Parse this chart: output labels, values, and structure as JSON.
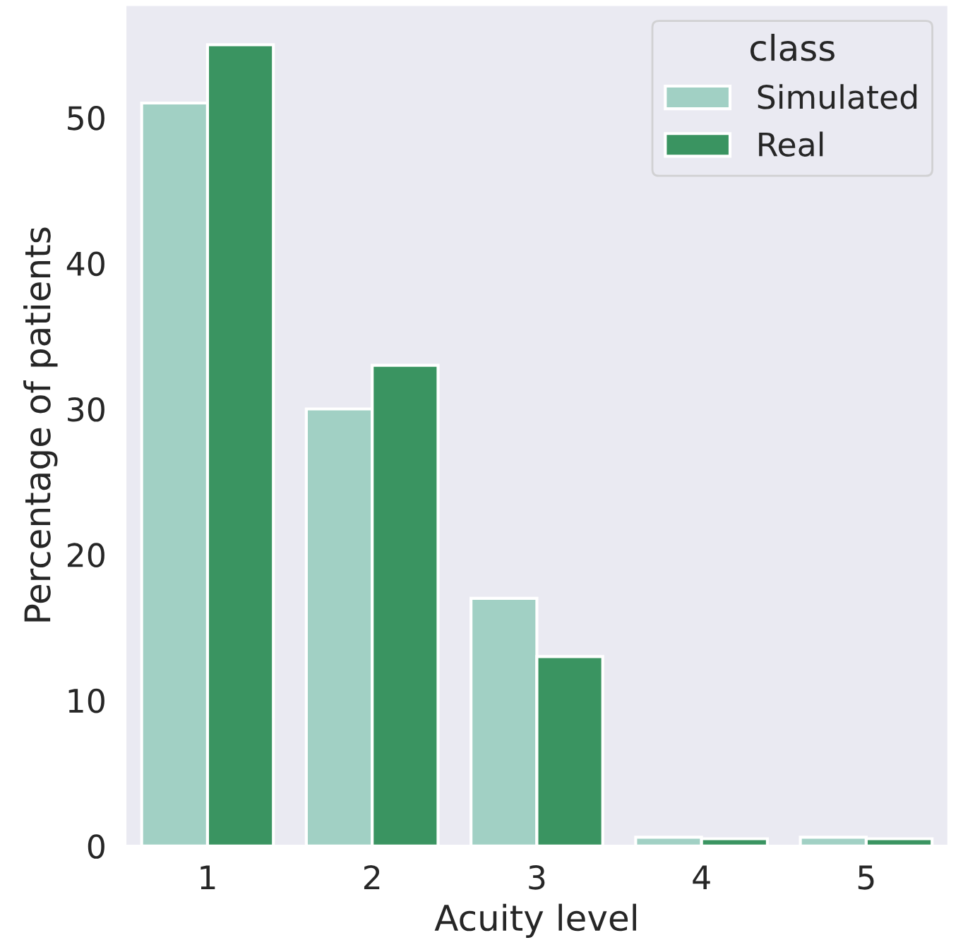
{
  "chart_data": {
    "type": "bar",
    "xlabel": "Acuity level",
    "ylabel": "Percentage of patients",
    "legend_title": "class",
    "categories": [
      "1",
      "2",
      "3",
      "4",
      "5"
    ],
    "series": [
      {
        "name": "Simulated",
        "color": "#a1d0c4",
        "values": [
          51,
          30,
          17,
          0.6,
          0.6
        ]
      },
      {
        "name": "Real",
        "color": "#3a9461",
        "values": [
          55,
          33,
          13,
          0.5,
          0.5
        ]
      }
    ],
    "ylim": [
      0,
      57.75
    ],
    "yticks": [
      0,
      10,
      20,
      30,
      40,
      50
    ],
    "grid": false,
    "legend": "top right"
  }
}
